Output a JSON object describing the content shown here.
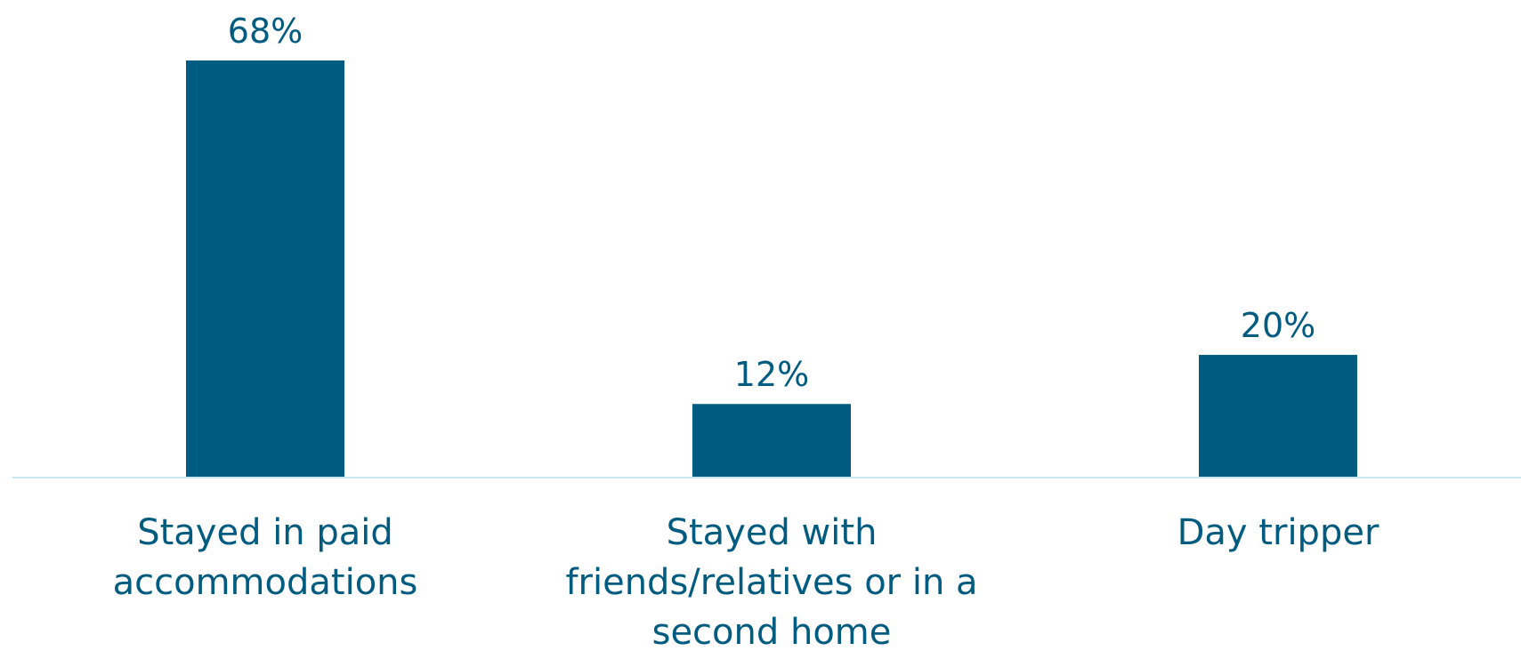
{
  "chart_data": {
    "type": "bar",
    "categories": [
      [
        "Stayed in paid",
        "accommodations"
      ],
      [
        "Stayed with",
        "friends/relatives or in a",
        "second home"
      ],
      [
        "Day tripper"
      ]
    ],
    "values": [
      68,
      12,
      20
    ],
    "value_labels": [
      "68%",
      "12%",
      "20%"
    ],
    "ylim": [
      0,
      70
    ],
    "grid": false,
    "legend": "none",
    "colors": {
      "bar": "#005b80",
      "baseline": "#c8e6ef",
      "text": "#005b80"
    }
  }
}
